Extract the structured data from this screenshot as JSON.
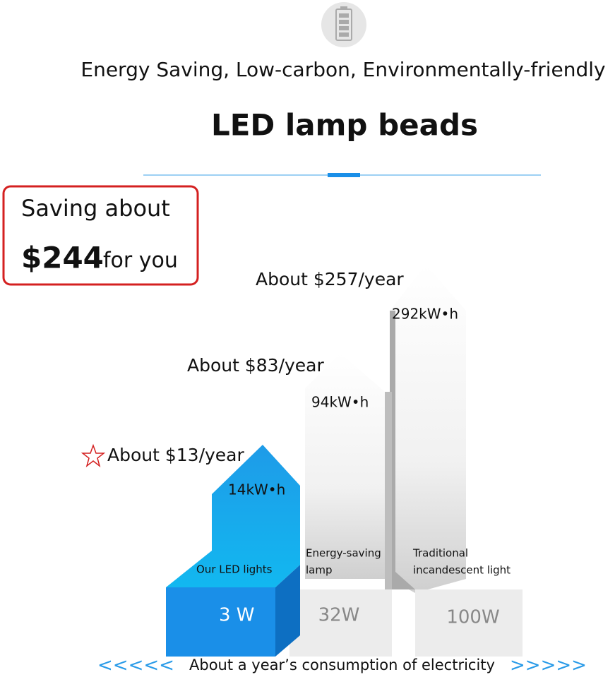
{
  "header": {
    "subtitle": "Energy Saving, Low-carbon, Environmentally-friendly",
    "title": "LED lamp beads"
  },
  "badge": {
    "line1": "Saving about",
    "amount": "$244",
    "suffix": "for you"
  },
  "items": [
    {
      "cost": "About $13/year",
      "energy": "14kW•h",
      "label": [
        "Our LED lights"
      ],
      "power": "3 W"
    },
    {
      "cost": "About $83/year",
      "energy": "94kW•h",
      "label": [
        "Energy-saving",
        "lamp"
      ],
      "power": "32W"
    },
    {
      "cost": "About $257/year",
      "energy": "292kW•h",
      "label": [
        "Traditional",
        "incandescent light"
      ],
      "power": "100W"
    }
  ],
  "footer": {
    "left": "<<<<<",
    "text": "About a year’s consumption of electricity",
    "right": ">>>>>"
  }
}
